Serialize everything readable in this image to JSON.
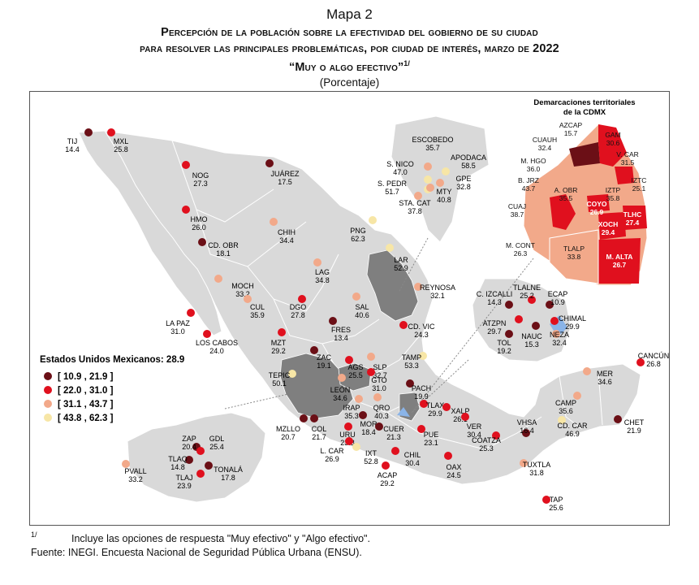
{
  "header": {
    "map_label": "Mapa 2",
    "title_line1": "Percepción de la población sobre la efectividad del gobierno de su ciudad",
    "title_line2": "para resolver las principales problemáticas, por ciudad de interés, marzo de 2022",
    "title_line3": "“Muy o algo efectivo”",
    "title_note_ref": "1/",
    "units": "(Porcentaje)"
  },
  "legend": {
    "national": "Estados Unidos Mexicanos: 28.9",
    "classes": [
      {
        "label": "[ 10.9 , 21.9 ]",
        "color": "#6b0f16"
      },
      {
        "label": "[ 22.0 , 31.0 ]",
        "color": "#e0101e"
      },
      {
        "label": "[ 31.1 , 43.7 ]",
        "color": "#f2a98a"
      },
      {
        "label": "[ 43.8 , 62.3 ]",
        "color": "#f7e6a6"
      }
    ]
  },
  "colors": {
    "land": "#d9d9d9",
    "highlight_state": "#7f7f7f",
    "blue_state": "#8ab4e8",
    "coast": "#ffffff"
  },
  "inset_cdmx": {
    "title_line1": "Demarcaciones territoriales",
    "title_line2": "de la CDMX"
  },
  "cities": [
    {
      "name": "TIJ",
      "value": "14.4",
      "cls": 0
    },
    {
      "name": "MXL",
      "value": "25.8",
      "cls": 1
    },
    {
      "name": "NOG",
      "value": "27.3",
      "cls": 1
    },
    {
      "name": "JUÁREZ",
      "value": "17.5",
      "cls": 0
    },
    {
      "name": "HMO",
      "value": "26.0",
      "cls": 1
    },
    {
      "name": "CHIH",
      "value": "34.4",
      "cls": 2
    },
    {
      "name": "CD. OBR",
      "value": "18.1",
      "cls": 0
    },
    {
      "name": "LAG",
      "value": "34.8",
      "cls": 2
    },
    {
      "name": "MOCH",
      "value": "33.2",
      "cls": 2
    },
    {
      "name": "CUL",
      "value": "35.9",
      "cls": 2
    },
    {
      "name": "DGO",
      "value": "27.8",
      "cls": 1
    },
    {
      "name": "LA PAZ",
      "value": "31.0",
      "cls": 1
    },
    {
      "name": "LOS CABOS",
      "value": "24.0",
      "cls": 1
    },
    {
      "name": "MZT",
      "value": "29.2",
      "cls": 1
    },
    {
      "name": "FRES",
      "value": "13.4",
      "cls": 0
    },
    {
      "name": "SAL",
      "value": "40.6",
      "cls": 2
    },
    {
      "name": "PNG",
      "value": "62.3",
      "cls": 3
    },
    {
      "name": "LAR",
      "value": "52.9",
      "cls": 3
    },
    {
      "name": "REYNOSA",
      "value": "32.1",
      "cls": 2
    },
    {
      "name": "CD. VIC",
      "value": "24.3",
      "cls": 1
    },
    {
      "name": "ZAC",
      "value": "19.1",
      "cls": 0
    },
    {
      "name": "AGS",
      "value": "25.5",
      "cls": 1
    },
    {
      "name": "SLP",
      "value": "32.7",
      "cls": 2
    },
    {
      "name": "TAMP",
      "value": "53.3",
      "cls": 3
    },
    {
      "name": "TEPIC",
      "value": "50.1",
      "cls": 3
    },
    {
      "name": "LEÓN",
      "value": "34.6",
      "cls": 2
    },
    {
      "name": "GTO",
      "value": "31.0",
      "cls": 1
    },
    {
      "name": "PACH",
      "value": "19.9",
      "cls": 0
    },
    {
      "name": "IRAP",
      "value": "35.3",
      "cls": 2
    },
    {
      "name": "QRO",
      "value": "40.3",
      "cls": 2
    },
    {
      "name": "TLAX",
      "value": "29.9",
      "cls": 1
    },
    {
      "name": "XALP",
      "value": "26.1",
      "cls": 1
    },
    {
      "name": "MOR",
      "value": "18.4",
      "cls": 0
    },
    {
      "name": "URU",
      "value": "23.8",
      "cls": 1
    },
    {
      "name": "MZLLO",
      "value": "20.7",
      "cls": 0
    },
    {
      "name": "COL",
      "value": "21.7",
      "cls": 0
    },
    {
      "name": "VER",
      "value": "30.4",
      "cls": 1
    },
    {
      "name": "CUER",
      "value": "21.3",
      "cls": 0
    },
    {
      "name": "PUE",
      "value": "23.1",
      "cls": 1
    },
    {
      "name": "IXT",
      "value": "52.8",
      "cls": 3
    },
    {
      "name": "L. CAR",
      "value": "26.9",
      "cls": 1
    },
    {
      "name": "CHIL",
      "value": "30.4",
      "cls": 1
    },
    {
      "name": "ACAP",
      "value": "29.2",
      "cls": 1
    },
    {
      "name": "OAX",
      "value": "24.5",
      "cls": 1
    },
    {
      "name": "COATZA",
      "value": "25.3",
      "cls": 1
    },
    {
      "name": "VHSA",
      "value": "16.4",
      "cls": 0
    },
    {
      "name": "CD. CAR",
      "value": "46.9",
      "cls": 3
    },
    {
      "name": "CAMP",
      "value": "35.6",
      "cls": 2
    },
    {
      "name": "MER",
      "value": "34.6",
      "cls": 2
    },
    {
      "name": "CANCÚN",
      "value": "26.8",
      "cls": 1
    },
    {
      "name": "CHET",
      "value": "21.9",
      "cls": 0
    },
    {
      "name": "TUXTLA",
      "value": "31.8",
      "cls": 2
    },
    {
      "name": "TAP",
      "value": "25.6",
      "cls": 1
    },
    {
      "name": "ZAP",
      "value": "20.4",
      "cls": 0
    },
    {
      "name": "GDL",
      "value": "25.4",
      "cls": 1
    },
    {
      "name": "TLAQ",
      "value": "14.8",
      "cls": 0
    },
    {
      "name": "TONALÁ",
      "value": "17.8",
      "cls": 0
    },
    {
      "name": "TLAJ",
      "value": "23.9",
      "cls": 1
    },
    {
      "name": "PVALL",
      "value": "33.2",
      "cls": 2
    },
    {
      "name": "ESCOBEDO",
      "value": "35.7",
      "cls": 2
    },
    {
      "name": "APODACA",
      "value": "58.5",
      "cls": 3
    },
    {
      "name": "S. NICO",
      "value": "47.0",
      "cls": 3
    },
    {
      "name": "GPE",
      "value": "32.8",
      "cls": 2
    },
    {
      "name": "S. PEDR",
      "value": "51.7",
      "cls": 3
    },
    {
      "name": "MTY",
      "value": "40.8",
      "cls": 2
    },
    {
      "name": "STA. CAT",
      "value": "37.8",
      "cls": 2
    },
    {
      "name": "C. IZCALLI",
      "value": "14.3",
      "cls": 0
    },
    {
      "name": "TLALNE",
      "value": "25.2",
      "cls": 1
    },
    {
      "name": "ECAP",
      "value": "10.9",
      "cls": 0
    },
    {
      "name": "CHIMAL",
      "value": "29.9",
      "cls": 1
    },
    {
      "name": "ATZPN",
      "value": "29.7",
      "cls": 1
    },
    {
      "name": "TOL",
      "value": "19.2",
      "cls": 0
    },
    {
      "name": "NAUC",
      "value": "15.3",
      "cls": 0
    },
    {
      "name": "NEZA",
      "value": "32.4",
      "cls": 2
    }
  ],
  "cdmx": [
    {
      "name": "AZCAP",
      "value": "15.7",
      "cls": 0
    },
    {
      "name": "GAM",
      "value": "30.6",
      "cls": 1
    },
    {
      "name": "CUAUH",
      "value": "32.4",
      "cls": 2
    },
    {
      "name": "V. CAR",
      "value": "31.5",
      "cls": 2
    },
    {
      "name": "M. HGO",
      "value": "36.0",
      "cls": 2
    },
    {
      "name": "IZTC",
      "value": "25.1",
      "cls": 1
    },
    {
      "name": "B. JRZ",
      "value": "43.7",
      "cls": 2
    },
    {
      "name": "A. OBR",
      "value": "35.5",
      "cls": 2
    },
    {
      "name": "IZTP",
      "value": "35.8",
      "cls": 2
    },
    {
      "name": "CUAJ",
      "value": "38.7",
      "cls": 2
    },
    {
      "name": "COYO",
      "value": "26.9",
      "cls": 1
    },
    {
      "name": "TLHC",
      "value": "27.4",
      "cls": 1
    },
    {
      "name": "XOCH",
      "value": "29.4",
      "cls": 1
    },
    {
      "name": "M. CONT",
      "value": "26.3",
      "cls": 1
    },
    {
      "name": "TLALP",
      "value": "33.8",
      "cls": 2
    },
    {
      "name": "M. ALTA",
      "value": "26.7",
      "cls": 1
    }
  ],
  "footnote": {
    "marker": "1/",
    "text": "Incluye las opciones de respuesta \"Muy efectivo\" y \"Algo efectivo\".",
    "source": "Fuente: INEGI. Encuesta Nacional de Seguridad Pública Urbana (ENSU)."
  }
}
